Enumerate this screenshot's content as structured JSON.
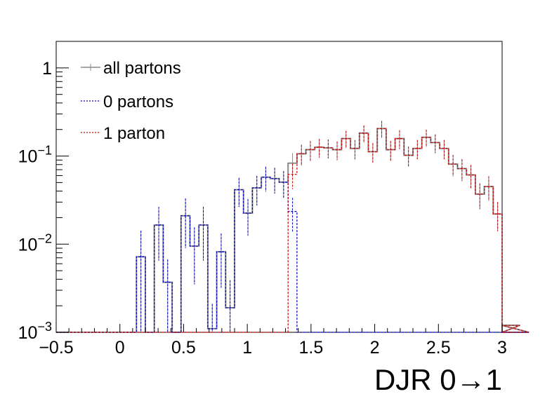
{
  "chart_data": {
    "type": "histogram",
    "title": "",
    "xlabel": "DJR 0→1",
    "ylabel": "",
    "xlim": [
      -0.5,
      3
    ],
    "ylim": [
      0.001,
      2
    ],
    "yscale": "log",
    "x_ticks": [
      {
        "value": -0.5,
        "label": "−0.5"
      },
      {
        "value": 0,
        "label": "0"
      },
      {
        "value": 0.5,
        "label": "0.5"
      },
      {
        "value": 1,
        "label": "1"
      },
      {
        "value": 1.5,
        "label": "1.5"
      },
      {
        "value": 2,
        "label": "2"
      },
      {
        "value": 2.5,
        "label": "2.5"
      },
      {
        "value": 3,
        "label": "3"
      }
    ],
    "y_ticks": [
      {
        "value": 0.001,
        "base": "10",
        "exp": "−3"
      },
      {
        "value": 0.01,
        "base": "10",
        "exp": "−2"
      },
      {
        "value": 0.1,
        "base": "10",
        "exp": "−1"
      },
      {
        "value": 1,
        "base": "1",
        "exp": ""
      }
    ],
    "legend_position": "top-left",
    "bin_width": 0.07,
    "x_start": -0.5,
    "series": [
      {
        "name": "all partons",
        "color": "#8a8a8a",
        "style": "solid",
        "values": [
          0,
          0,
          0,
          0,
          0,
          0,
          0,
          0,
          0,
          0.0072,
          0,
          0.0165,
          0.0037,
          0,
          0.021,
          0.0095,
          0.0165,
          0.0011,
          0.0082,
          0.0019,
          0.0415,
          0.0225,
          0.0435,
          0.0575,
          0.0555,
          0.0505,
          0.083,
          0.106,
          0.118,
          0.126,
          0.124,
          0.118,
          0.158,
          0.122,
          0.182,
          0.112,
          0.205,
          0.118,
          0.158,
          0.102,
          0.122,
          0.163,
          0.142,
          0.122,
          0.081,
          0.072,
          0.061,
          0.037,
          0.045,
          0.022,
          0,
          0,
          0.0012,
          0
        ],
        "errors": [
          0,
          0,
          0,
          0,
          0,
          0,
          0,
          0,
          0,
          0.007,
          0,
          0.01,
          0.003,
          0,
          0.012,
          0.006,
          0.01,
          0.001,
          0.005,
          0.002,
          0.015,
          0.01,
          0.016,
          0.018,
          0.018,
          0.017,
          0.025,
          0.028,
          0.03,
          0.03,
          0.03,
          0.028,
          0.035,
          0.03,
          0.04,
          0.028,
          0.045,
          0.03,
          0.038,
          0.026,
          0.03,
          0.036,
          0.034,
          0.03,
          0.022,
          0.02,
          0.018,
          0.012,
          0.014,
          0.008,
          0,
          0,
          0.0008,
          0
        ]
      },
      {
        "name": "0 partons",
        "color": "#0000cc",
        "style": "dashed",
        "values": [
          0,
          0,
          0,
          0,
          0,
          0,
          0,
          0,
          0,
          0.0072,
          0,
          0.0165,
          0.0037,
          0,
          0.021,
          0.0095,
          0.0165,
          0.0011,
          0.0082,
          0.0019,
          0.0415,
          0.0225,
          0.0435,
          0.0575,
          0.0555,
          0.0505,
          0.0235,
          0,
          0,
          0,
          0,
          0,
          0,
          0,
          0,
          0,
          0,
          0,
          0,
          0,
          0,
          0,
          0,
          0,
          0,
          0,
          0,
          0,
          0,
          0,
          0,
          0,
          0,
          0
        ],
        "errors": [
          0,
          0,
          0,
          0,
          0,
          0,
          0,
          0,
          0,
          0.007,
          0,
          0.01,
          0.003,
          0,
          0.012,
          0.006,
          0.01,
          0.001,
          0.005,
          0.002,
          0.015,
          0.01,
          0.016,
          0.018,
          0.018,
          0.017,
          0.01,
          0,
          0,
          0,
          0,
          0,
          0,
          0,
          0,
          0,
          0,
          0,
          0,
          0,
          0,
          0,
          0,
          0,
          0,
          0,
          0,
          0,
          0,
          0,
          0,
          0,
          0,
          0
        ]
      },
      {
        "name": "1 parton",
        "color": "#cc0000",
        "style": "dashed",
        "values": [
          0,
          0,
          0,
          0,
          0,
          0,
          0,
          0,
          0,
          0,
          0,
          0,
          0,
          0,
          0,
          0,
          0,
          0,
          0,
          0,
          0,
          0,
          0,
          0,
          0,
          0,
          0.062,
          0.106,
          0.118,
          0.126,
          0.124,
          0.118,
          0.158,
          0.122,
          0.182,
          0.112,
          0.205,
          0.118,
          0.158,
          0.102,
          0.122,
          0.163,
          0.142,
          0.122,
          0.081,
          0.072,
          0.061,
          0.037,
          0.045,
          0.022,
          0,
          0,
          0.0012,
          0
        ],
        "errors": [
          0,
          0,
          0,
          0,
          0,
          0,
          0,
          0,
          0,
          0,
          0,
          0,
          0,
          0,
          0,
          0,
          0,
          0,
          0,
          0,
          0,
          0,
          0,
          0,
          0,
          0,
          0.02,
          0.028,
          0.03,
          0.03,
          0.03,
          0.028,
          0.035,
          0.03,
          0.04,
          0.028,
          0.045,
          0.03,
          0.038,
          0.026,
          0.03,
          0.036,
          0.034,
          0.03,
          0.022,
          0.02,
          0.018,
          0.012,
          0.014,
          0.008,
          0,
          0,
          0.0008,
          0
        ]
      }
    ]
  }
}
